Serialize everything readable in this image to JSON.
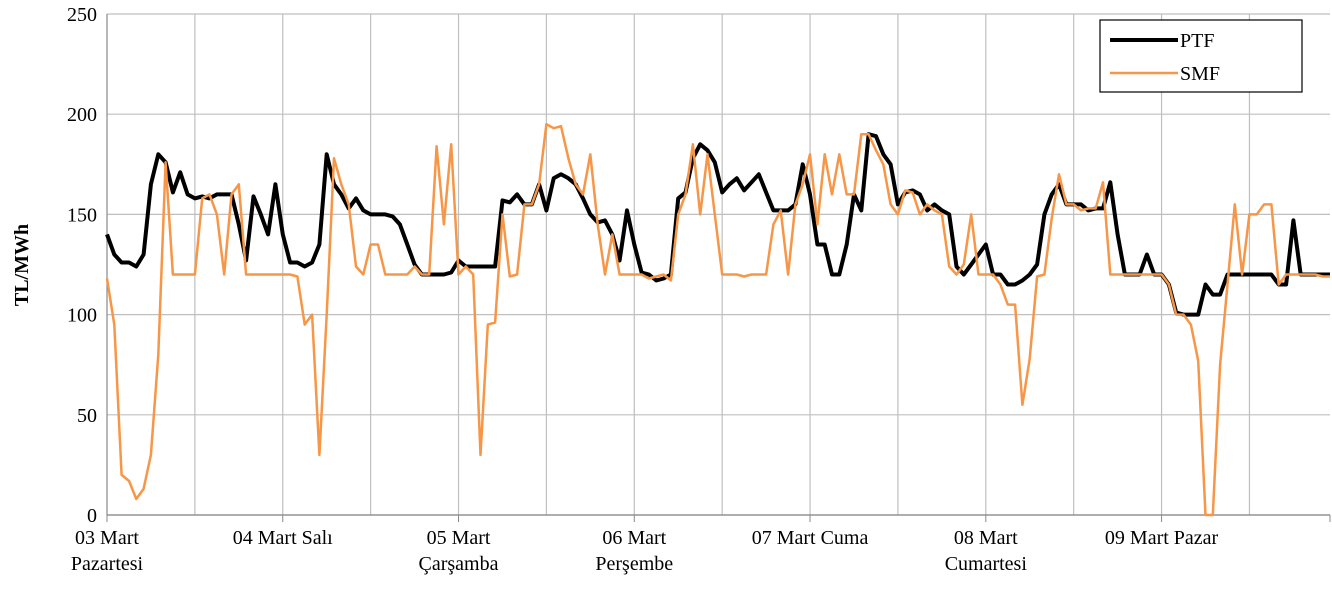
{
  "chart_data": {
    "type": "line",
    "y_label": "TL/MWh",
    "categories": [
      "03 Mart\nPazartesi",
      null,
      null,
      null,
      null,
      null,
      null,
      null,
      null,
      null,
      null,
      null,
      null,
      null,
      null,
      null,
      null,
      null,
      null,
      null,
      null,
      null,
      null,
      null,
      "04 Mart Salı",
      null,
      null,
      null,
      null,
      null,
      null,
      null,
      null,
      null,
      null,
      null,
      null,
      null,
      null,
      null,
      null,
      null,
      null,
      null,
      null,
      null,
      null,
      null,
      "05 Mart\nÇarşamba",
      null,
      null,
      null,
      null,
      null,
      null,
      null,
      null,
      null,
      null,
      null,
      null,
      null,
      null,
      null,
      null,
      null,
      null,
      null,
      null,
      null,
      null,
      null,
      "06 Mart\nPerşembe",
      null,
      null,
      null,
      null,
      null,
      null,
      null,
      null,
      null,
      null,
      null,
      null,
      null,
      null,
      null,
      null,
      null,
      null,
      null,
      null,
      null,
      null,
      null,
      "07 Mart Cuma",
      null,
      null,
      null,
      null,
      null,
      null,
      null,
      null,
      null,
      null,
      null,
      null,
      null,
      null,
      null,
      null,
      null,
      null,
      null,
      null,
      null,
      null,
      null,
      "08 Mart\nCumartesi",
      null,
      null,
      null,
      null,
      null,
      null,
      null,
      null,
      null,
      null,
      null,
      null,
      null,
      null,
      null,
      null,
      null,
      null,
      null,
      null,
      null,
      null,
      null,
      "09 Mart Pazar",
      null,
      null,
      null,
      null,
      null,
      null,
      null,
      null,
      null,
      null,
      null,
      null,
      null,
      null,
      null,
      null,
      null,
      null,
      null,
      null,
      null,
      null,
      null
    ],
    "series": [
      {
        "name": "PTF",
        "color": "#000000",
        "width": 4,
        "values": [
          140,
          130,
          126,
          126,
          124,
          130,
          165,
          180,
          176,
          161,
          171,
          160,
          158,
          159,
          158,
          160,
          160,
          160,
          145,
          127,
          159,
          150,
          140,
          165,
          140,
          126,
          126,
          124,
          126,
          135,
          180,
          165,
          160,
          153,
          158,
          152,
          150,
          150,
          150,
          149,
          145,
          135,
          125,
          120,
          120,
          120,
          120,
          121,
          127,
          124,
          124,
          124,
          124,
          124,
          157,
          156,
          160,
          155,
          155,
          165,
          152,
          168,
          170,
          168,
          165,
          158,
          150,
          146,
          147,
          140,
          127,
          152,
          135,
          121,
          120,
          117,
          118,
          120,
          158,
          161,
          178,
          185,
          182,
          176,
          161,
          165,
          168,
          162,
          166,
          170,
          161,
          152,
          152,
          152,
          155,
          175,
          160,
          135,
          135,
          120,
          120,
          135,
          160,
          152,
          190,
          189,
          180,
          175,
          155,
          161,
          162,
          160,
          152,
          155,
          152,
          150,
          124,
          120,
          125,
          130,
          135,
          120,
          120,
          115,
          115,
          117,
          120,
          125,
          150,
          160,
          165,
          155,
          155,
          155,
          152,
          153,
          153,
          166,
          140,
          120,
          120,
          120,
          130,
          120,
          120,
          115,
          101,
          100,
          100,
          100,
          115,
          110,
          110,
          120,
          120,
          120,
          120,
          120,
          120,
          120,
          115,
          115,
          147,
          120,
          120,
          120,
          120,
          120
        ]
      },
      {
        "name": "SMF",
        "color": "#f79646",
        "width": 2.5,
        "values": [
          118,
          95,
          20,
          17,
          8,
          13,
          30,
          80,
          176,
          120,
          120,
          120,
          120,
          158,
          160,
          150,
          120,
          160,
          165,
          120,
          120,
          120,
          120,
          120,
          120,
          120,
          119,
          95,
          100,
          30,
          100,
          178,
          165,
          155,
          124,
          120,
          135,
          135,
          120,
          120,
          120,
          120,
          124,
          120,
          120,
          184,
          145,
          185,
          120,
          124,
          120,
          30,
          95,
          96,
          150,
          119,
          120,
          155,
          155,
          165,
          195,
          193,
          194,
          178,
          165,
          160,
          180,
          145,
          120,
          140,
          120,
          120,
          120,
          120,
          118,
          119,
          120,
          117,
          150,
          160,
          185,
          150,
          180,
          150,
          120,
          120,
          120,
          119,
          120,
          120,
          120,
          145,
          152,
          120,
          155,
          165,
          180,
          145,
          180,
          160,
          180,
          160,
          160,
          190,
          190,
          182,
          175,
          155,
          150,
          162,
          161,
          150,
          155,
          152,
          150,
          124,
          120,
          125,
          150,
          120,
          120,
          120,
          115,
          105,
          105,
          55,
          78,
          119,
          120,
          148,
          170,
          155,
          155,
          152,
          153,
          153,
          166,
          120,
          120,
          120,
          120,
          120,
          120,
          120,
          120,
          115,
          100,
          100,
          95,
          77,
          0,
          0,
          75,
          115,
          155,
          120,
          150,
          150,
          155,
          155,
          115,
          120,
          120,
          120,
          120,
          120,
          119,
          119
        ]
      }
    ],
    "ylim": [
      0,
      250
    ],
    "yticks": [
      0,
      50,
      100,
      150,
      200,
      250
    ],
    "grid": true,
    "legend": "top-right"
  }
}
